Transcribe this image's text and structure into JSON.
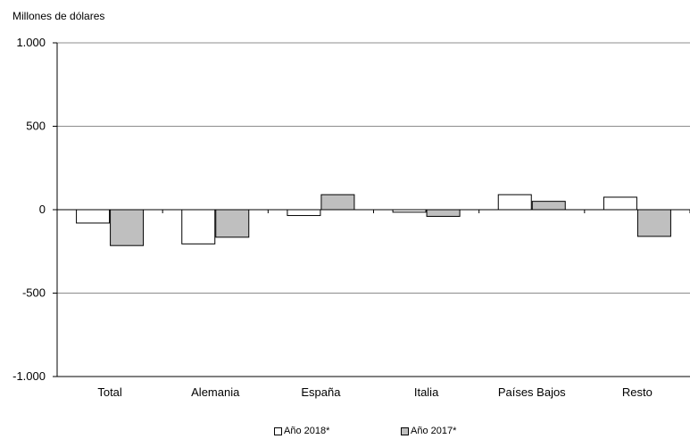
{
  "chart_data": {
    "type": "bar",
    "ylabel": "Millones de dólares",
    "categories": [
      "Total",
      "Alemania",
      "España",
      "Italia",
      "Países Bajos",
      "Resto"
    ],
    "series": [
      {
        "name": "Año 2018*",
        "color": "#ffffff",
        "values": [
          -80,
          -205,
          -35,
          -15,
          90,
          75
        ]
      },
      {
        "name": "Año 2017*",
        "color": "#bfbfbf",
        "values": [
          -215,
          -165,
          90,
          -40,
          50,
          -160
        ]
      }
    ],
    "ylim": [
      -1000,
      1000
    ],
    "yticks": [
      1000,
      500,
      0,
      -500,
      -1000
    ],
    "ytick_labels": [
      "1.000",
      "500",
      "0",
      "-500",
      "-1.000"
    ],
    "grid": true,
    "legend_position": "bottom"
  }
}
